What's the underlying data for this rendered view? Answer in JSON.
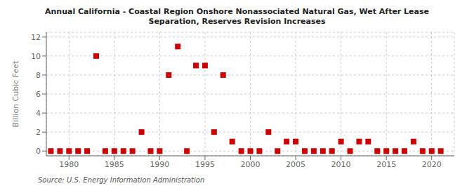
{
  "chart_data": {
    "type": "scatter",
    "title": "Annual California - Coastal Region Onshore Nonassociated Natural Gas, Wet After Lease\nSeparation, Reserves Revision Increases",
    "ylabel": "Billion Cubic Feet",
    "annotations": [
      "Source: U.S. Energy Information Administration"
    ],
    "x": [
      1978,
      1979,
      1980,
      1981,
      1982,
      1983,
      1984,
      1985,
      1986,
      1987,
      1988,
      1989,
      1990,
      1991,
      1992,
      1993,
      1994,
      1995,
      1996,
      1997,
      1998,
      1999,
      2000,
      2001,
      2002,
      2003,
      2004,
      2005,
      2006,
      2007,
      2008,
      2009,
      2010,
      2011,
      2012,
      2013,
      2014,
      2015,
      2016,
      2017,
      2018,
      2019,
      2020,
      2021
    ],
    "values": [
      0.0,
      0.0,
      0.0,
      0.0,
      0.0,
      10.0,
      0.0,
      0.0,
      0.0,
      0.0,
      2.0,
      0.0,
      0.0,
      8.0,
      11.0,
      0.0,
      9.0,
      9.0,
      2.0,
      8.0,
      1.0,
      0.0,
      0.0,
      0.0,
      2.0,
      0.0,
      1.0,
      1.0,
      0.0,
      0.0,
      0.0,
      0.0,
      1.0,
      0.0,
      1.0,
      1.0,
      0.0,
      0.0,
      0.0,
      0.0,
      1.0,
      0.0,
      0.0,
      0.0
    ],
    "color": "#cc0000",
    "marker": "square",
    "xlim": [
      1977.5,
      2022.5
    ],
    "ylim": [
      -0.5,
      12.5
    ],
    "xticks": [
      1980,
      1985,
      1990,
      1995,
      2000,
      2005,
      2010,
      2015,
      2020
    ],
    "yticks": [
      0,
      2,
      4,
      6,
      8,
      10,
      12
    ],
    "grid": true
  }
}
